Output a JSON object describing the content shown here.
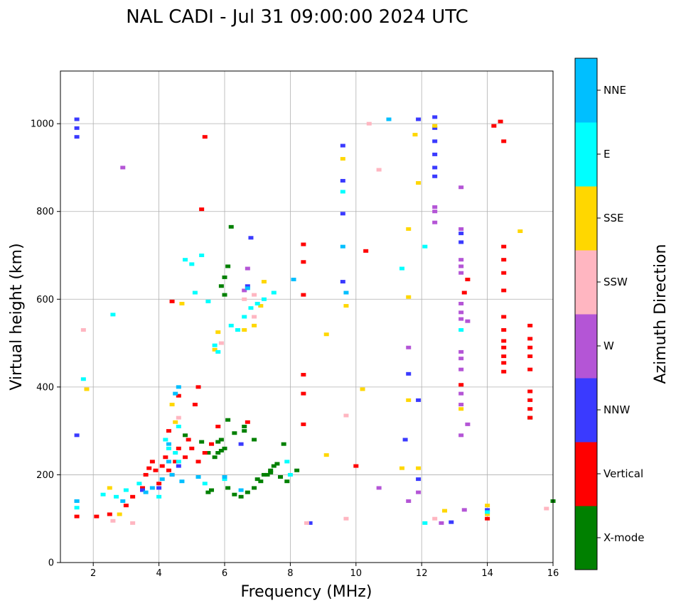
{
  "chart_data": {
    "type": "scatter",
    "title": "NAL CADI - Jul 31 09:00:00 2024 UTC",
    "xlabel": "Frequency (MHz)",
    "ylabel": "Virtual height (km)",
    "xlim": [
      1,
      16
    ],
    "ylim": [
      0,
      1120
    ],
    "xticks": [
      2,
      4,
      6,
      8,
      10,
      12,
      14,
      16
    ],
    "yticks": [
      0,
      200,
      400,
      600,
      800,
      1000
    ],
    "grid": true,
    "colorbar": {
      "label": "Azimuth Direction",
      "categories": [
        {
          "name": "X-mode",
          "color": "#008000"
        },
        {
          "name": "Vertical",
          "color": "#ff0000"
        },
        {
          "name": "NNW",
          "color": "#3a3aff"
        },
        {
          "name": "W",
          "color": "#b455d6"
        },
        {
          "name": "SSW",
          "color": "#ffb6c1"
        },
        {
          "name": "SSE",
          "color": "#ffd700"
        },
        {
          "name": "E",
          "color": "#00ffff"
        },
        {
          "name": "NNE",
          "color": "#00bfff"
        }
      ]
    },
    "series": [
      {
        "name": "X-mode",
        "points": [
          [
            5.5,
            160
          ],
          [
            5.6,
            165
          ],
          [
            5.7,
            240
          ],
          [
            5.8,
            250
          ],
          [
            5.9,
            255
          ],
          [
            6.0,
            260
          ],
          [
            6.1,
            170
          ],
          [
            6.3,
            155
          ],
          [
            6.5,
            150
          ],
          [
            6.7,
            160
          ],
          [
            6.9,
            170
          ],
          [
            7.1,
            185
          ],
          [
            7.3,
            200
          ],
          [
            7.4,
            210
          ],
          [
            7.5,
            220
          ],
          [
            7.7,
            195
          ],
          [
            7.9,
            185
          ],
          [
            8.2,
            210
          ],
          [
            5.9,
            280
          ],
          [
            6.3,
            295
          ],
          [
            6.6,
            310
          ],
          [
            6.9,
            280
          ],
          [
            5.5,
            250
          ],
          [
            5.8,
            275
          ],
          [
            6.1,
            325
          ],
          [
            6.0,
            610
          ],
          [
            5.9,
            630
          ],
          [
            6.0,
            650
          ],
          [
            6.1,
            675
          ],
          [
            6.2,
            765
          ],
          [
            7.0,
            190
          ],
          [
            7.2,
            200
          ],
          [
            7.6,
            225
          ],
          [
            4.8,
            290
          ],
          [
            5.3,
            275
          ],
          [
            6.6,
            300
          ],
          [
            7.4,
            205
          ],
          [
            7.8,
            270
          ],
          [
            15.3,
            330
          ],
          [
            16.0,
            140
          ]
        ]
      },
      {
        "name": "Vertical",
        "points": [
          [
            1.5,
            105
          ],
          [
            2.1,
            105
          ],
          [
            2.5,
            110
          ],
          [
            3.0,
            130
          ],
          [
            3.2,
            150
          ],
          [
            3.5,
            170
          ],
          [
            3.6,
            200
          ],
          [
            3.7,
            215
          ],
          [
            3.8,
            230
          ],
          [
            3.9,
            210
          ],
          [
            4.0,
            180
          ],
          [
            4.1,
            220
          ],
          [
            4.2,
            240
          ],
          [
            4.3,
            210
          ],
          [
            4.4,
            200
          ],
          [
            4.5,
            230
          ],
          [
            4.6,
            260
          ],
          [
            4.8,
            240
          ],
          [
            4.9,
            280
          ],
          [
            5.0,
            260
          ],
          [
            5.2,
            230
          ],
          [
            5.4,
            250
          ],
          [
            5.6,
            270
          ],
          [
            5.8,
            310
          ],
          [
            4.3,
            300
          ],
          [
            4.6,
            380
          ],
          [
            5.2,
            400
          ],
          [
            5.1,
            360
          ],
          [
            5.3,
            805
          ],
          [
            5.4,
            970
          ],
          [
            6.7,
            320
          ],
          [
            8.4,
            315
          ],
          [
            8.4,
            385
          ],
          [
            8.4,
            428
          ],
          [
            8.4,
            610
          ],
          [
            8.4,
            685
          ],
          [
            8.4,
            725
          ],
          [
            10.0,
            220
          ],
          [
            10.3,
            710
          ],
          [
            14.2,
            995
          ],
          [
            14.4,
            1005
          ],
          [
            14.5,
            960
          ],
          [
            14.5,
            720
          ],
          [
            14.5,
            690
          ],
          [
            14.5,
            660
          ],
          [
            14.5,
            620
          ],
          [
            14.5,
            560
          ],
          [
            14.5,
            530
          ],
          [
            14.5,
            505
          ],
          [
            14.5,
            490
          ],
          [
            14.5,
            470
          ],
          [
            14.5,
            455
          ],
          [
            14.5,
            435
          ],
          [
            15.3,
            540
          ],
          [
            15.3,
            510
          ],
          [
            15.3,
            490
          ],
          [
            15.3,
            470
          ],
          [
            15.3,
            440
          ],
          [
            15.3,
            390
          ],
          [
            15.3,
            370
          ],
          [
            15.3,
            350
          ],
          [
            15.3,
            330
          ],
          [
            13.4,
            645
          ],
          [
            13.3,
            615
          ],
          [
            13.2,
            405
          ],
          [
            14.0,
            100
          ],
          [
            4.4,
            595
          ]
        ]
      },
      {
        "name": "NNW",
        "points": [
          [
            1.5,
            1010
          ],
          [
            1.5,
            990
          ],
          [
            1.5,
            970
          ],
          [
            1.5,
            290
          ],
          [
            1.5,
            140
          ],
          [
            3.5,
            165
          ],
          [
            4.0,
            170
          ],
          [
            4.6,
            220
          ],
          [
            6.5,
            270
          ],
          [
            6.8,
            740
          ],
          [
            6.7,
            630
          ],
          [
            8.6,
            90
          ],
          [
            9.6,
            950
          ],
          [
            9.6,
            870
          ],
          [
            9.6,
            795
          ],
          [
            9.6,
            640
          ],
          [
            11.5,
            280
          ],
          [
            11.6,
            430
          ],
          [
            11.9,
            370
          ],
          [
            11.9,
            190
          ],
          [
            11.9,
            1010
          ],
          [
            12.4,
            1015
          ],
          [
            12.4,
            990
          ],
          [
            12.4,
            960
          ],
          [
            12.4,
            930
          ],
          [
            12.4,
            900
          ],
          [
            12.4,
            880
          ],
          [
            12.9,
            92
          ],
          [
            13.2,
            750
          ],
          [
            13.2,
            730
          ],
          [
            14.0,
            120
          ]
        ]
      },
      {
        "name": "W",
        "points": [
          [
            2.9,
            900
          ],
          [
            10.7,
            170
          ],
          [
            11.6,
            490
          ],
          [
            11.6,
            140
          ],
          [
            11.9,
            160
          ],
          [
            12.4,
            810
          ],
          [
            12.4,
            800
          ],
          [
            12.4,
            775
          ],
          [
            12.6,
            90
          ],
          [
            13.2,
            855
          ],
          [
            13.2,
            760
          ],
          [
            13.2,
            690
          ],
          [
            13.2,
            675
          ],
          [
            13.2,
            660
          ],
          [
            13.2,
            590
          ],
          [
            13.2,
            570
          ],
          [
            13.2,
            555
          ],
          [
            13.2,
            480
          ],
          [
            13.2,
            465
          ],
          [
            13.2,
            440
          ],
          [
            13.2,
            385
          ],
          [
            13.2,
            360
          ],
          [
            13.2,
            290
          ],
          [
            13.3,
            120
          ],
          [
            13.4,
            315
          ],
          [
            13.4,
            550
          ],
          [
            6.6,
            620
          ],
          [
            6.7,
            670
          ]
        ]
      },
      {
        "name": "SSW",
        "points": [
          [
            1.7,
            530
          ],
          [
            2.6,
            95
          ],
          [
            3.2,
            90
          ],
          [
            4.6,
            330
          ],
          [
            6.6,
            600
          ],
          [
            6.9,
            610
          ],
          [
            8.5,
            90
          ],
          [
            9.7,
            335
          ],
          [
            9.7,
            100
          ],
          [
            10.4,
            1000
          ],
          [
            10.7,
            895
          ],
          [
            12.4,
            100
          ],
          [
            15.8,
            123
          ],
          [
            5.9,
            500
          ],
          [
            6.9,
            560
          ]
        ]
      },
      {
        "name": "SSE",
        "points": [
          [
            1.8,
            395
          ],
          [
            2.5,
            170
          ],
          [
            2.8,
            110
          ],
          [
            4.4,
            360
          ],
          [
            4.5,
            320
          ],
          [
            4.7,
            590
          ],
          [
            5.7,
            485
          ],
          [
            6.6,
            530
          ],
          [
            6.9,
            540
          ],
          [
            7.1,
            585
          ],
          [
            9.1,
            520
          ],
          [
            9.1,
            245
          ],
          [
            9.6,
            920
          ],
          [
            9.7,
            585
          ],
          [
            10.2,
            395
          ],
          [
            11.4,
            215
          ],
          [
            11.6,
            760
          ],
          [
            11.6,
            605
          ],
          [
            11.6,
            370
          ],
          [
            11.8,
            975
          ],
          [
            11.9,
            865
          ],
          [
            11.9,
            215
          ],
          [
            12.4,
            995
          ],
          [
            12.7,
            118
          ],
          [
            13.2,
            350
          ],
          [
            14.0,
            110
          ],
          [
            14.0,
            130
          ],
          [
            15.0,
            755
          ],
          [
            5.8,
            525
          ],
          [
            7.2,
            640
          ]
        ]
      },
      {
        "name": "E",
        "points": [
          [
            1.5,
            125
          ],
          [
            2.3,
            155
          ],
          [
            2.7,
            150
          ],
          [
            3.0,
            165
          ],
          [
            3.4,
            180
          ],
          [
            4.0,
            150
          ],
          [
            4.2,
            280
          ],
          [
            4.3,
            260
          ],
          [
            4.5,
            250
          ],
          [
            4.6,
            230
          ],
          [
            4.8,
            690
          ],
          [
            5.0,
            680
          ],
          [
            5.4,
            180
          ],
          [
            5.7,
            495
          ],
          [
            5.8,
            480
          ],
          [
            6.0,
            190
          ],
          [
            6.2,
            540
          ],
          [
            6.4,
            530
          ],
          [
            6.6,
            560
          ],
          [
            6.8,
            580
          ],
          [
            7.0,
            590
          ],
          [
            7.2,
            600
          ],
          [
            7.5,
            615
          ],
          [
            7.9,
            230
          ],
          [
            8.0,
            200
          ],
          [
            9.6,
            845
          ],
          [
            11.4,
            670
          ],
          [
            12.1,
            720
          ],
          [
            12.1,
            90
          ],
          [
            13.2,
            530
          ],
          [
            14.0,
            115
          ],
          [
            2.6,
            565
          ],
          [
            1.7,
            418
          ],
          [
            5.3,
            700
          ],
          [
            5.5,
            595
          ],
          [
            4.6,
            310
          ],
          [
            5.1,
            615
          ]
        ]
      },
      {
        "name": "NNE",
        "points": [
          [
            1.5,
            140
          ],
          [
            2.9,
            140
          ],
          [
            3.6,
            160
          ],
          [
            3.8,
            170
          ],
          [
            4.1,
            190
          ],
          [
            4.3,
            230
          ],
          [
            4.4,
            200
          ],
          [
            4.7,
            185
          ],
          [
            5.2,
            195
          ],
          [
            6.0,
            195
          ],
          [
            6.5,
            165
          ],
          [
            6.7,
            625
          ],
          [
            8.1,
            645
          ],
          [
            9.6,
            720
          ],
          [
            9.7,
            615
          ],
          [
            11.0,
            1010
          ],
          [
            4.3,
            270
          ],
          [
            4.5,
            385
          ],
          [
            4.6,
            400
          ]
        ]
      }
    ]
  }
}
